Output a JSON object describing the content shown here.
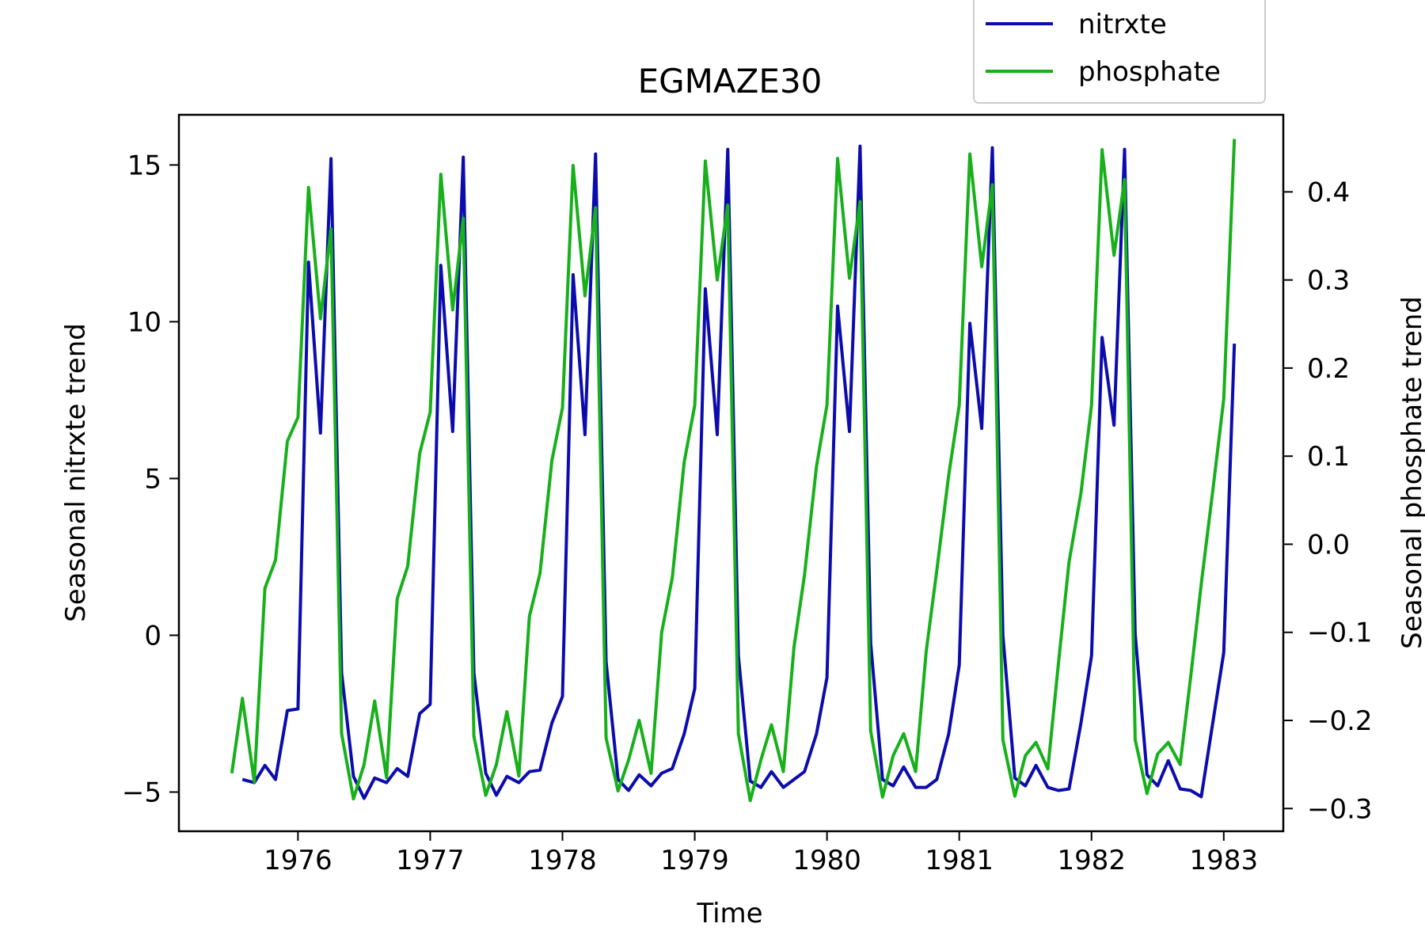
{
  "chart_data": {
    "type": "line",
    "title": "EGMAZE30",
    "xlabel": "Time",
    "ylabel_left": "Seasonal nitrxte trend",
    "ylabel_right": "Seasonal phosphate trend",
    "xlim": [
      1975.1,
      1983.45
    ],
    "ylim_left": [
      -6.25,
      16.6
    ],
    "ylim_right": [
      -0.3258,
      0.4875
    ],
    "x_ticks": [
      1976,
      1977,
      1978,
      1979,
      1980,
      1981,
      1982,
      1983
    ],
    "x_tick_labels": [
      "1976",
      "1977",
      "1978",
      "1979",
      "1980",
      "1981",
      "1982",
      "1983"
    ],
    "y_ticks_left": [
      -5,
      0,
      5,
      10,
      15
    ],
    "y_tick_labels_left": [
      "−5",
      "0",
      "5",
      "10",
      "15"
    ],
    "y_ticks_right": [
      -0.3,
      -0.2,
      -0.1,
      0.0,
      0.1,
      0.2,
      0.3,
      0.4
    ],
    "y_tick_labels_right": [
      "−0.3",
      "−0.2",
      "−0.1",
      "0.0",
      "0.1",
      "0.2",
      "0.3",
      "0.4"
    ],
    "legend": {
      "placement": "top-right, above plot",
      "entries": [
        "nitrxte",
        "phosphate"
      ]
    },
    "grid": false,
    "series": [
      {
        "name": "nitrxte",
        "axis": "left",
        "color": "#0c0cad",
        "x": [
          1975.58,
          1975.67,
          1975.75,
          1975.83,
          1975.92,
          1976.0,
          1976.08,
          1976.17,
          1976.25,
          1976.33,
          1976.42,
          1976.5,
          1976.58,
          1976.67,
          1976.75,
          1976.83,
          1976.92,
          1977.0,
          1977.08,
          1977.17,
          1977.25,
          1977.33,
          1977.42,
          1977.5,
          1977.58,
          1977.67,
          1977.75,
          1977.83,
          1977.92,
          1978.0,
          1978.08,
          1978.17,
          1978.25,
          1978.33,
          1978.42,
          1978.5,
          1978.58,
          1978.67,
          1978.75,
          1978.83,
          1978.92,
          1979.0,
          1979.08,
          1979.17,
          1979.25,
          1979.33,
          1979.42,
          1979.5,
          1979.58,
          1979.67,
          1979.75,
          1979.83,
          1979.92,
          1980.0,
          1980.08,
          1980.17,
          1980.25,
          1980.33,
          1980.42,
          1980.5,
          1980.58,
          1980.67,
          1980.75,
          1980.83,
          1980.92,
          1981.0,
          1981.08,
          1981.17,
          1981.25,
          1981.33,
          1981.42,
          1981.5,
          1981.58,
          1981.67,
          1981.75,
          1981.83,
          1981.92,
          1982.0,
          1982.08,
          1982.17,
          1982.25,
          1982.33,
          1982.42,
          1982.5,
          1982.58,
          1982.67,
          1982.75,
          1982.83,
          1982.92,
          1983.0,
          1983.08
        ],
        "values": [
          -4.6,
          -4.7,
          -4.15,
          -4.6,
          -2.4,
          -2.35,
          11.9,
          6.45,
          15.2,
          -1.2,
          -4.5,
          -5.2,
          -4.55,
          -4.7,
          -4.25,
          -4.5,
          -2.5,
          -2.2,
          11.8,
          6.5,
          15.25,
          -1.2,
          -4.4,
          -5.1,
          -4.5,
          -4.7,
          -4.35,
          -4.3,
          -2.8,
          -1.95,
          11.5,
          6.4,
          15.35,
          -0.85,
          -4.6,
          -4.95,
          -4.45,
          -4.8,
          -4.4,
          -4.25,
          -3.15,
          -1.7,
          11.05,
          6.4,
          15.5,
          -0.65,
          -4.65,
          -4.85,
          -4.35,
          -4.85,
          -4.6,
          -4.35,
          -3.15,
          -1.35,
          10.5,
          6.5,
          15.6,
          -0.25,
          -4.6,
          -4.8,
          -4.2,
          -4.85,
          -4.85,
          -4.6,
          -3.15,
          -0.95,
          9.95,
          6.6,
          15.55,
          0.0,
          -4.55,
          -4.8,
          -4.15,
          -4.85,
          -4.95,
          -4.9,
          -2.8,
          -0.65,
          9.5,
          6.7,
          15.5,
          0.05,
          -4.45,
          -4.8,
          -4.0,
          -4.9,
          -4.95,
          -5.15,
          -2.7,
          -0.55,
          9.3
        ]
      },
      {
        "name": "phosphate",
        "axis": "right",
        "color": "#17b01b",
        "x": [
          1975.5,
          1975.58,
          1975.67,
          1975.75,
          1975.83,
          1975.92,
          1976.0,
          1976.08,
          1976.17,
          1976.25,
          1976.33,
          1976.42,
          1976.5,
          1976.58,
          1976.67,
          1976.75,
          1976.83,
          1976.92,
          1977.0,
          1977.08,
          1977.17,
          1977.25,
          1977.33,
          1977.42,
          1977.5,
          1977.58,
          1977.67,
          1977.75,
          1977.83,
          1977.92,
          1978.0,
          1978.08,
          1978.17,
          1978.25,
          1978.33,
          1978.42,
          1978.5,
          1978.58,
          1978.67,
          1978.75,
          1978.83,
          1978.92,
          1979.0,
          1979.08,
          1979.17,
          1979.25,
          1979.33,
          1979.42,
          1979.5,
          1979.58,
          1979.67,
          1979.75,
          1979.83,
          1979.92,
          1980.0,
          1980.08,
          1980.17,
          1980.25,
          1980.33,
          1980.42,
          1980.5,
          1980.58,
          1980.67,
          1980.75,
          1980.83,
          1980.92,
          1981.0,
          1981.08,
          1981.17,
          1981.25,
          1981.33,
          1981.42,
          1981.5,
          1981.58,
          1981.67,
          1981.75,
          1981.83,
          1981.92,
          1982.0,
          1982.08,
          1982.17,
          1982.25,
          1982.33,
          1982.42,
          1982.5,
          1982.58,
          1982.67,
          1982.75,
          1982.83,
          1982.92,
          1983.0,
          1983.08
        ],
        "values": [
          -0.26,
          -0.175,
          -0.27,
          -0.05,
          -0.018,
          0.117,
          0.144,
          0.405,
          0.256,
          0.358,
          -0.215,
          -0.289,
          -0.25,
          -0.178,
          -0.265,
          -0.062,
          -0.025,
          0.103,
          0.15,
          0.42,
          0.266,
          0.37,
          -0.218,
          -0.285,
          -0.25,
          -0.19,
          -0.263,
          -0.082,
          -0.033,
          0.095,
          0.155,
          0.43,
          0.282,
          0.382,
          -0.22,
          -0.28,
          -0.245,
          -0.2,
          -0.26,
          -0.1,
          -0.038,
          0.093,
          0.158,
          0.435,
          0.3,
          0.385,
          -0.215,
          -0.291,
          -0.245,
          -0.205,
          -0.258,
          -0.117,
          -0.035,
          0.088,
          0.158,
          0.438,
          0.302,
          0.389,
          -0.212,
          -0.287,
          -0.24,
          -0.215,
          -0.258,
          -0.122,
          -0.03,
          0.078,
          0.158,
          0.443,
          0.315,
          0.408,
          -0.222,
          -0.286,
          -0.24,
          -0.225,
          -0.255,
          -0.135,
          -0.02,
          0.058,
          0.158,
          0.448,
          0.328,
          0.414,
          -0.222,
          -0.283,
          -0.238,
          -0.225,
          -0.25,
          -0.15,
          -0.045,
          0.065,
          0.165,
          0.46
        ]
      }
    ]
  }
}
